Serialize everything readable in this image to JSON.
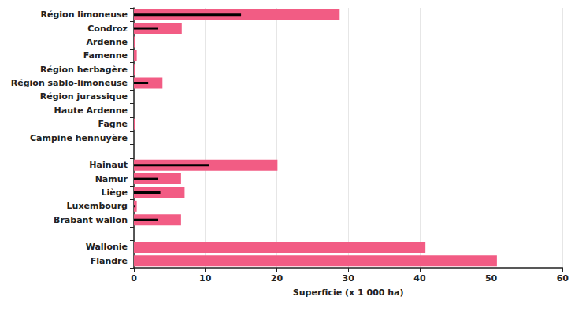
{
  "chart_data": {
    "type": "bar",
    "orientation": "horizontal",
    "x_label": "Superficie (x 1 000 ha)",
    "categories": [
      "Région limoneuse",
      "Condroz",
      "Ardenne",
      "Famenne",
      "Région herbagère",
      "Région sablo-limoneuse",
      "Région jurassique",
      "Haute Ardenne",
      "Fagne",
      "Campine hennuyère",
      null,
      "Hainaut",
      "Namur",
      "Liège",
      "Luxembourg",
      "Brabant wallon",
      null,
      "Wallonie",
      "Flandre"
    ],
    "series": [
      {
        "color": "#f25c84",
        "values": [
          28.8,
          6.7,
          0.2,
          0.4,
          0.15,
          4.0,
          0,
          0,
          0.2,
          0,
          null,
          20.1,
          6.6,
          7.1,
          0.4,
          6.6,
          null,
          40.8,
          50.8
        ]
      },
      {
        "color": "#000000",
        "values": [
          15.0,
          3.4,
          0,
          0,
          0,
          2.0,
          0,
          0,
          0,
          0,
          null,
          10.5,
          3.4,
          3.7,
          0.1,
          3.4,
          null,
          null,
          null
        ]
      }
    ],
    "xlim": [
      0,
      60
    ],
    "xticks": [
      0,
      10,
      20,
      30,
      40,
      50,
      60
    ],
    "grid": true
  }
}
